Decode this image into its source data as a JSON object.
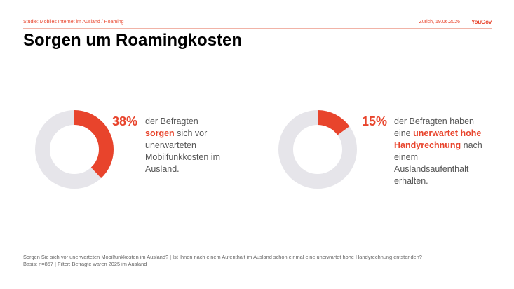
{
  "header": {
    "study_label": "Studie: Mobiles Internet im Ausland / Roaming",
    "date_label": "Zürich, 19.06.2026",
    "brand": "YouGov"
  },
  "title": "Sorgen um Roamingkosten",
  "colors": {
    "accent": "#e8442c",
    "track": "#e6e5ea",
    "text": "#555555"
  },
  "chart_data": [
    {
      "type": "pie",
      "value": 38,
      "value_label": "38%",
      "description": {
        "before": "der Befragten ",
        "highlight": "sorgen",
        "after": " sich vor unerwarteten Mobilfunkkosten im Ausland."
      }
    },
    {
      "type": "pie",
      "value": 15,
      "value_label": "15%",
      "description": {
        "before": "der Befragten haben eine ",
        "highlight": "unerwartet hohe Handyrechnung",
        "after": " nach einem Auslandsaufenthalt erhalten."
      }
    }
  ],
  "footnote": {
    "question": "Sorgen Sie sich vor unerwarteten Mobilfunkkosten im Ausland? | Ist Ihnen nach einem Aufenthalt im Ausland schon einmal eine unerwartet hohe Handyrechnung entstanden?",
    "basis": "Basis: n=857 | Filter: Befragte waren 2025 im Ausland"
  }
}
